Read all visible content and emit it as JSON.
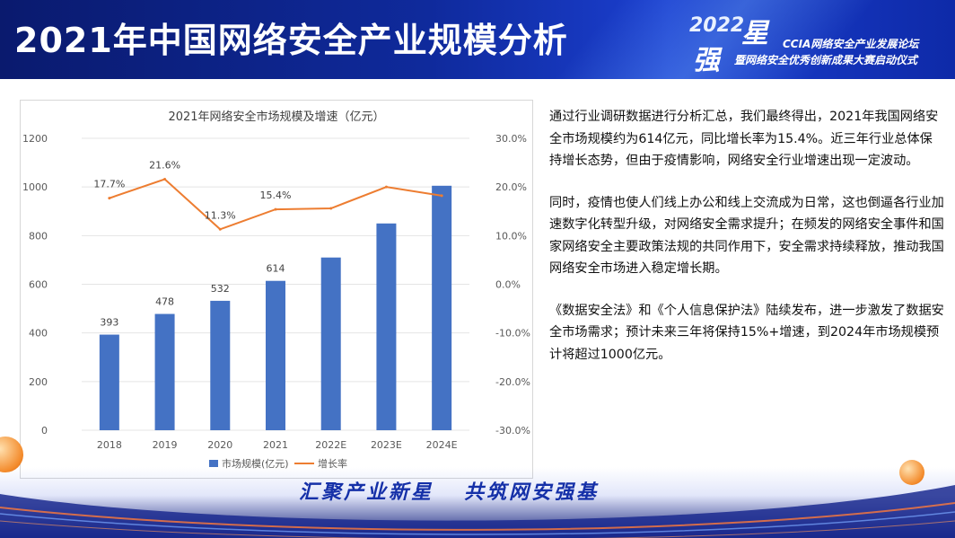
{
  "header": {
    "title": "2021年中国网络安全产业规模分析",
    "logo": {
      "year": "2022",
      "char1": "星",
      "char2": "强",
      "line1": "CCIA网络安全产业发展论坛",
      "line2": "暨网络安全优秀创新成果大赛启动仪式"
    }
  },
  "body": {
    "paragraphs": [
      "通过行业调研数据进行分析汇总，我们最终得出，2021年我国网络安全市场规模约为614亿元，同比增长率为15.4%。近三年行业总体保持增长态势，但由于疫情影响，网络安全行业增速出现一定波动。",
      "同时，疫情也使人们线上办公和线上交流成为日常，这也倒逼各行业加速数字化转型升级，对网络安全需求提升；在频发的网络安全事件和国家网络安全主要政策法规的共同作用下，安全需求持续释放，推动我国网络安全市场进入稳定增长期。",
      "《数据安全法》和《个人信息保护法》陆续发布，进一步激发了数据安全市场需求；预计未来三年将保持15%+增速，到2024年市场规模预计将超过1000亿元。"
    ]
  },
  "footer": {
    "slogan_left": "汇聚产业新星",
    "slogan_right": "共筑网安强基"
  },
  "colors": {
    "bar": "#4472c4",
    "line": "#ed7d31"
  },
  "chart_data": {
    "type": "bar",
    "title": "2021年网络安全市场规模及增速（亿元）",
    "categories": [
      "2018",
      "2019",
      "2020",
      "2021",
      "2022E",
      "2023E",
      "2024E"
    ],
    "series": [
      {
        "name": "市场规模(亿元)",
        "type": "bar",
        "axis": "left",
        "values": [
          393,
          478,
          532,
          614,
          710,
          850,
          1005
        ],
        "labels": [
          "393",
          "478",
          "532",
          "614",
          "",
          "",
          ""
        ]
      },
      {
        "name": "增长率",
        "type": "line",
        "axis": "right",
        "values": [
          17.7,
          21.6,
          11.3,
          15.4,
          15.6,
          20.0,
          18.2
        ],
        "labels": [
          "17.7%",
          "21.6%",
          "11.3%",
          "15.4%",
          "",
          "",
          ""
        ]
      }
    ],
    "ylim": [
      0,
      1200
    ],
    "yticks": [
      "0",
      "200",
      "400",
      "600",
      "800",
      "1000",
      "1200"
    ],
    "y2lim": [
      -30,
      30
    ],
    "y2ticks": [
      "-30.0%",
      "-20.0%",
      "-10.0%",
      "0.0%",
      "10.0%",
      "20.0%",
      "30.0%"
    ],
    "legend": "bottom"
  }
}
